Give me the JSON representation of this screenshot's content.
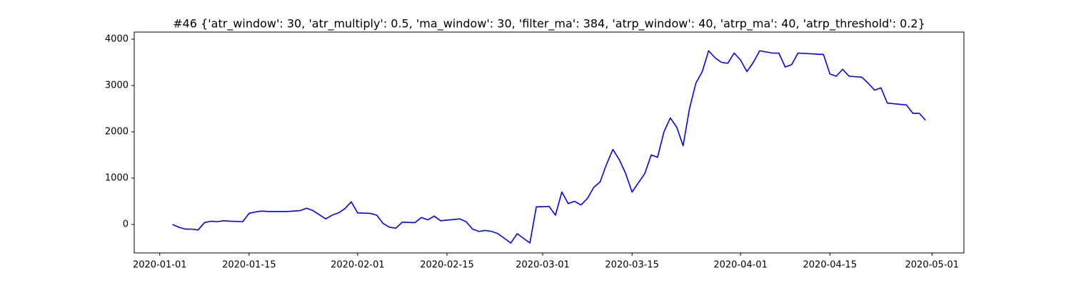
{
  "chart_data": {
    "type": "line",
    "title": "#46 {'atr_window': 30, 'atr_multiply': 0.5, 'ma_window': 30, 'filter_ma': 384, 'atrp_window': 40, 'atrp_ma': 40, 'atrp_threshold': 0.2}",
    "x": [
      "2020-01-03",
      "2020-01-04",
      "2020-01-05",
      "2020-01-06",
      "2020-01-07",
      "2020-01-08",
      "2020-01-09",
      "2020-01-10",
      "2020-01-11",
      "2020-01-12",
      "2020-01-14",
      "2020-01-15",
      "2020-01-16",
      "2020-01-17",
      "2020-01-18",
      "2020-01-21",
      "2020-01-23",
      "2020-01-24",
      "2020-01-25",
      "2020-01-27",
      "2020-01-28",
      "2020-01-29",
      "2020-01-30",
      "2020-01-31",
      "2020-02-01",
      "2020-02-03",
      "2020-02-04",
      "2020-02-05",
      "2020-02-06",
      "2020-02-07",
      "2020-02-08",
      "2020-02-10",
      "2020-02-11",
      "2020-02-12",
      "2020-02-13",
      "2020-02-14",
      "2020-02-17",
      "2020-02-18",
      "2020-02-19",
      "2020-02-20",
      "2020-02-21",
      "2020-02-22",
      "2020-02-23",
      "2020-02-24",
      "2020-02-25",
      "2020-02-26",
      "2020-02-27",
      "2020-02-28",
      "2020-02-29",
      "2020-03-02",
      "2020-03-03",
      "2020-03-04",
      "2020-03-05",
      "2020-03-06",
      "2020-03-07",
      "2020-03-08",
      "2020-03-09",
      "2020-03-10",
      "2020-03-11",
      "2020-03-12",
      "2020-03-13",
      "2020-03-14",
      "2020-03-15",
      "2020-03-17",
      "2020-03-18",
      "2020-03-19",
      "2020-03-20",
      "2020-03-21",
      "2020-03-22",
      "2020-03-23",
      "2020-03-24",
      "2020-03-25",
      "2020-03-26",
      "2020-03-27",
      "2020-03-28",
      "2020-03-29",
      "2020-03-30",
      "2020-03-31",
      "2020-04-01",
      "2020-04-02",
      "2020-04-03",
      "2020-04-04",
      "2020-04-06",
      "2020-04-07",
      "2020-04-08",
      "2020-04-09",
      "2020-04-10",
      "2020-04-14",
      "2020-04-15",
      "2020-04-16",
      "2020-04-17",
      "2020-04-18",
      "2020-04-20",
      "2020-04-21",
      "2020-04-22",
      "2020-04-23",
      "2020-04-24",
      "2020-04-27",
      "2020-04-28",
      "2020-04-29",
      "2020-04-30"
    ],
    "values": [
      0,
      -60,
      -100,
      -100,
      -120,
      40,
      70,
      60,
      80,
      70,
      60,
      240,
      270,
      290,
      280,
      280,
      300,
      350,
      300,
      120,
      200,
      250,
      340,
      490,
      250,
      240,
      200,
      20,
      -60,
      -80,
      50,
      40,
      150,
      100,
      180,
      80,
      120,
      60,
      -100,
      -150,
      -130,
      -150,
      -200,
      -300,
      -400,
      -200,
      -300,
      -400,
      380,
      390,
      200,
      700,
      450,
      500,
      420,
      560,
      800,
      920,
      1300,
      1620,
      1400,
      1100,
      700,
      1100,
      1500,
      1450,
      2000,
      2300,
      2100,
      1700,
      2500,
      3050,
      3300,
      3750,
      3600,
      3500,
      3480,
      3700,
      3550,
      3300,
      3500,
      3750,
      3700,
      3700,
      3400,
      3450,
      3700,
      3670,
      3250,
      3200,
      3350,
      3200,
      3180,
      3050,
      2900,
      2950,
      2620,
      2580,
      2400,
      2400,
      2250
    ],
    "color": "#0000ff",
    "xlim": [
      "2019-12-28",
      "2020-05-06"
    ],
    "xticks": [
      "2020-01-01",
      "2020-01-15",
      "2020-02-01",
      "2020-02-15",
      "2020-03-01",
      "2020-03-15",
      "2020-04-01",
      "2020-04-15",
      "2020-05-01"
    ],
    "ylim": [
      -615,
      4154
    ],
    "yticks": [
      0,
      1000,
      2000,
      3000,
      4000
    ]
  }
}
